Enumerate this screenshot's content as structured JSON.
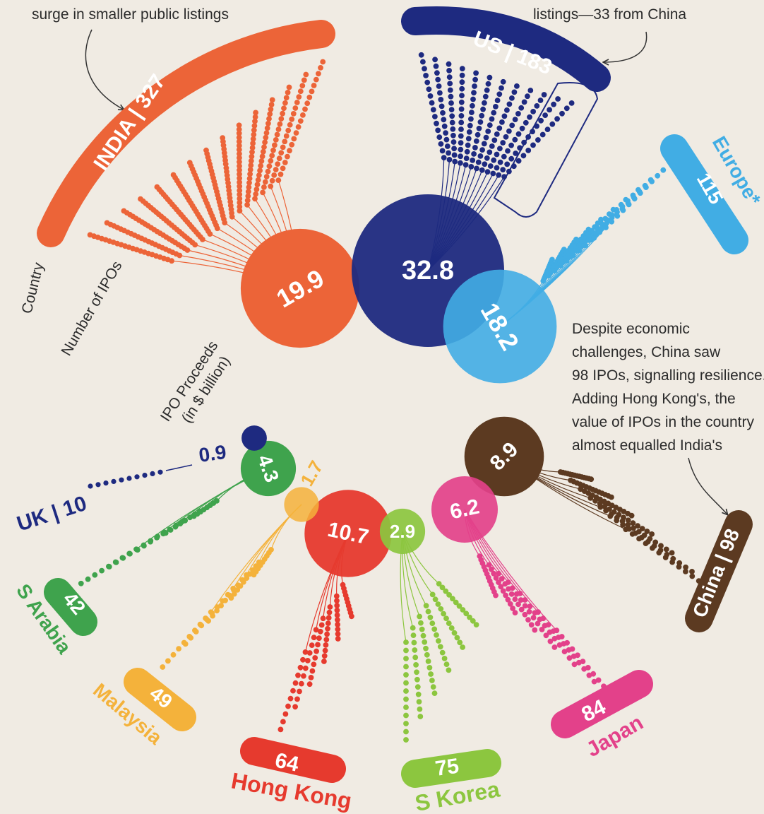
{
  "intro": {
    "india_note": "surge in smaller public listings",
    "us_note": "listings—33 from China"
  },
  "legend": {
    "country": "Country",
    "number_of_ipos": "Number of IPOs",
    "proceeds_line1": "IPO Proceeds",
    "proceeds_line2": "(in $ billion)"
  },
  "china_note": [
    "Despite economic",
    "challenges, China saw",
    "98 IPOs, signalling resilience.",
    "Adding Hong Kong's, the",
    "value of IPOs in the country",
    "almost equalled India's"
  ],
  "colors": {
    "background": "#f0ebe3",
    "India": "#ec6438",
    "US": "#1e2a80",
    "Europe": "#41ade4",
    "UK": "#1e2a80",
    "S Arabia": "#3fa34d",
    "Malaysia": "#f4b23b",
    "Hong Kong": "#e63a2e",
    "S Korea": "#8cc63f",
    "Japan": "#e3418a",
    "China": "#5c3a21"
  },
  "chart_data": {
    "type": "bubble",
    "series": [
      {
        "country": "INDIA",
        "label": "INDIA | 327",
        "ipos": 327,
        "proceeds": "19.9"
      },
      {
        "country": "US",
        "label": "US | 183",
        "ipos": 183,
        "proceeds": "32.8",
        "from_china": 33
      },
      {
        "country": "Europe*",
        "label": "115",
        "ipos": 115,
        "proceeds": "18.2"
      },
      {
        "country": "UK",
        "label": "UK | 10",
        "ipos": 10,
        "proceeds": "0.9"
      },
      {
        "country": "S Arabia",
        "label": "42",
        "ipos": 42,
        "proceeds": "4.3"
      },
      {
        "country": "Malaysia",
        "label": "49",
        "ipos": 49,
        "proceeds": "1.7"
      },
      {
        "country": "Hong Kong",
        "label": "64",
        "ipos": 64,
        "proceeds": "10.7"
      },
      {
        "country": "S Korea",
        "label": "75",
        "ipos": 75,
        "proceeds": "2.9"
      },
      {
        "country": "Japan",
        "label": "84",
        "ipos": 84,
        "proceeds": "6.2"
      },
      {
        "country": "China",
        "label": "China | 98",
        "ipos": 98,
        "proceeds": "8.9"
      }
    ]
  }
}
